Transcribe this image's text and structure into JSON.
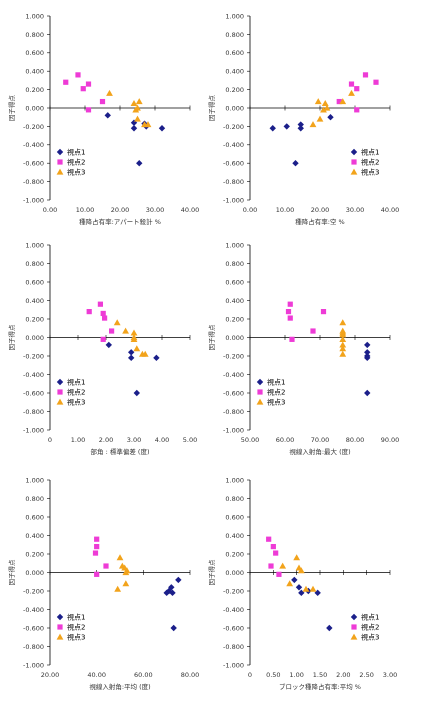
{
  "colors": {
    "series1": "#1b1f8a",
    "series2": "#ee3bd6",
    "series3": "#f2a31b",
    "axis": "#000000",
    "tick_text": "#333333"
  },
  "chart_data": [
    {
      "type": "scatter",
      "xlabel": "種降占有率:アパート殺計 %",
      "ylabel": "因子得点",
      "xlim": [
        0,
        40
      ],
      "ylim": [
        -1,
        1
      ],
      "xticks": [
        "0.00",
        "10.00",
        "20.00",
        "30.00",
        "40.00"
      ],
      "yticks": [
        "1.000",
        "0.800",
        "0.600",
        "0.400",
        "0.200",
        "0.000",
        "-0.200",
        "-0.400",
        "-0.600",
        "-0.800",
        "-1.000"
      ],
      "legend": [
        "視点1",
        "視点2",
        "視点3"
      ],
      "legend_position": "lower-left",
      "series": [
        {
          "name": "視点1",
          "marker": "diamond",
          "points": [
            [
              16.5,
              -0.08
            ],
            [
              24,
              -0.16
            ],
            [
              24,
              -0.22
            ],
            [
              25.5,
              -0.6
            ],
            [
              27,
              -0.17
            ],
            [
              27.5,
              -0.2
            ],
            [
              32,
              -0.22
            ]
          ]
        },
        {
          "name": "視点2",
          "marker": "square",
          "points": [
            [
              4.5,
              0.28
            ],
            [
              8,
              0.36
            ],
            [
              9.5,
              0.21
            ],
            [
              11,
              0.26
            ],
            [
              11,
              -0.02
            ],
            [
              15,
              0.07
            ]
          ]
        },
        {
          "name": "視点3",
          "marker": "triangle",
          "points": [
            [
              17,
              0.16
            ],
            [
              24,
              0.05
            ],
            [
              24.5,
              -0.02
            ],
            [
              25,
              0.0
            ],
            [
              25.5,
              0.07
            ],
            [
              27,
              -0.18
            ],
            [
              28,
              -0.18
            ],
            [
              25,
              -0.12
            ]
          ]
        }
      ]
    },
    {
      "type": "scatter",
      "xlabel": "種降占有率:空 %",
      "ylabel": "因子得点",
      "xlim": [
        0,
        40
      ],
      "ylim": [
        -1,
        1
      ],
      "xticks": [
        "0.00",
        "10.00",
        "20.00",
        "30.00",
        "40.00"
      ],
      "yticks": [
        "1.000",
        "0.800",
        "0.600",
        "0.400",
        "0.200",
        "0.000",
        "-0.200",
        "-0.400",
        "-0.600",
        "-0.800",
        "-1.000"
      ],
      "legend": [
        "視点1",
        "視点2",
        "視点3"
      ],
      "legend_position": "lower-right",
      "series": [
        {
          "name": "視点1",
          "marker": "diamond",
          "points": [
            [
              6.5,
              -0.22
            ],
            [
              10.5,
              -0.2
            ],
            [
              13,
              -0.6
            ],
            [
              14.5,
              -0.18
            ],
            [
              14.5,
              -0.22
            ],
            [
              23,
              -0.1
            ]
          ]
        },
        {
          "name": "視点2",
          "marker": "square",
          "points": [
            [
              25.5,
              0.07
            ],
            [
              29,
              0.26
            ],
            [
              30.5,
              0.21
            ],
            [
              30.5,
              -0.02
            ],
            [
              33,
              0.36
            ],
            [
              36,
              0.28
            ]
          ]
        },
        {
          "name": "視点3",
          "marker": "triangle",
          "points": [
            [
              18,
              -0.18
            ],
            [
              19.5,
              0.07
            ],
            [
              20,
              -0.12
            ],
            [
              21,
              -0.02
            ],
            [
              21.5,
              0.05
            ],
            [
              22,
              0.0
            ],
            [
              26.5,
              0.07
            ],
            [
              29,
              0.16
            ]
          ]
        }
      ]
    },
    {
      "type": "scatter",
      "xlabel": "部角 : 標準偏差 (度)",
      "ylabel": "因子得点",
      "xlim": [
        0,
        5
      ],
      "ylim": [
        -1,
        1
      ],
      "xticks": [
        "0",
        "1.00",
        "2.00",
        "3.00",
        "4.00",
        "5.00"
      ],
      "yticks": [
        "1.000",
        "0.800",
        "0.600",
        "0.400",
        "0.200",
        "0.000",
        "-0.200",
        "-0.400",
        "-0.600",
        "-0.800",
        "-1.000"
      ],
      "legend": [
        "視点1",
        "視点2",
        "視点3"
      ],
      "legend_position": "lower-left",
      "series": [
        {
          "name": "視点1",
          "marker": "diamond",
          "points": [
            [
              2.1,
              -0.08
            ],
            [
              2.9,
              -0.16
            ],
            [
              2.9,
              -0.22
            ],
            [
              3.1,
              -0.6
            ],
            [
              3.8,
              -0.22
            ]
          ]
        },
        {
          "name": "視点2",
          "marker": "square",
          "points": [
            [
              1.4,
              0.28
            ],
            [
              1.8,
              0.36
            ],
            [
              1.9,
              0.26
            ],
            [
              1.95,
              0.21
            ],
            [
              1.9,
              -0.02
            ],
            [
              2.2,
              0.07
            ]
          ]
        },
        {
          "name": "視点3",
          "marker": "triangle",
          "points": [
            [
              2.4,
              0.16
            ],
            [
              2.7,
              0.07
            ],
            [
              3.0,
              0.05
            ],
            [
              3.0,
              -0.02
            ],
            [
              3.0,
              0.0
            ],
            [
              3.1,
              -0.12
            ],
            [
              3.3,
              -0.18
            ],
            [
              3.4,
              -0.18
            ]
          ]
        }
      ]
    },
    {
      "type": "scatter",
      "xlabel": "視線入射角:最大 (度)",
      "ylabel": "因子得点",
      "xlim": [
        50,
        90
      ],
      "ylim": [
        -1,
        1
      ],
      "xticks": [
        "50.00",
        "60.00",
        "70.00",
        "80.00",
        "90.00"
      ],
      "yticks": [
        "1.000",
        "0.800",
        "0.600",
        "0.400",
        "0.200",
        "0.000",
        "-0.200",
        "-0.400",
        "-0.600",
        "-0.800",
        "-1.000"
      ],
      "legend": [
        "視点1",
        "視点2",
        "視点3"
      ],
      "legend_position": "lower-left",
      "series": [
        {
          "name": "視点1",
          "marker": "diamond",
          "points": [
            [
              83.5,
              -0.08
            ],
            [
              83.5,
              -0.16
            ],
            [
              83.5,
              -0.2
            ],
            [
              83.5,
              -0.22
            ],
            [
              83.5,
              -0.6
            ]
          ]
        },
        {
          "name": "視点2",
          "marker": "square",
          "points": [
            [
              61,
              0.28
            ],
            [
              61.5,
              0.36
            ],
            [
              61.5,
              0.21
            ],
            [
              62,
              -0.02
            ],
            [
              68,
              0.07
            ],
            [
              71,
              0.28
            ]
          ]
        },
        {
          "name": "視点3",
          "marker": "triangle",
          "points": [
            [
              76.5,
              0.16
            ],
            [
              76.5,
              0.07
            ],
            [
              76.5,
              0.03
            ],
            [
              76.5,
              -0.02
            ],
            [
              76.5,
              -0.08
            ],
            [
              76.5,
              -0.12
            ],
            [
              76.5,
              -0.18
            ],
            [
              76.5,
              0.05
            ]
          ]
        }
      ]
    },
    {
      "type": "scatter",
      "xlabel": "視線入射角:平均 (度)",
      "ylabel": "因子得点",
      "xlim": [
        20,
        80
      ],
      "ylim": [
        -1,
        1
      ],
      "xticks": [
        "20.00",
        "40.00",
        "60.00",
        "80.00"
      ],
      "yticks": [
        "1.000",
        "0.800",
        "0.600",
        "0.400",
        "0.200",
        "0.000",
        "-0.200",
        "-0.400",
        "-0.600",
        "-0.800",
        "-1.000"
      ],
      "legend": [
        "視点1",
        "視点2",
        "視点3"
      ],
      "legend_position": "lower-left",
      "series": [
        {
          "name": "視点1",
          "marker": "diamond",
          "points": [
            [
              70,
              -0.22
            ],
            [
              71,
              -0.2
            ],
            [
              72,
              -0.16
            ],
            [
              72.5,
              -0.22
            ],
            [
              73,
              -0.6
            ],
            [
              75,
              -0.08
            ]
          ]
        },
        {
          "name": "視点2",
          "marker": "square",
          "points": [
            [
              40,
              0.36
            ],
            [
              40,
              0.28
            ],
            [
              39.5,
              0.21
            ],
            [
              40,
              -0.02
            ],
            [
              44,
              0.07
            ]
          ]
        },
        {
          "name": "視点3",
          "marker": "triangle",
          "points": [
            [
              49,
              -0.18
            ],
            [
              50,
              0.16
            ],
            [
              51,
              0.07
            ],
            [
              52,
              0.05
            ],
            [
              52.5,
              0.0
            ],
            [
              52.5,
              -0.12
            ],
            [
              53,
              0.02
            ]
          ]
        }
      ]
    },
    {
      "type": "scatter",
      "xlabel": "ブロック種降占有率:平均 %",
      "ylabel": "因子得点",
      "xlim": [
        0,
        3
      ],
      "ylim": [
        -1,
        1
      ],
      "xticks": [
        "0",
        "0.50",
        "1.00",
        "1.50",
        "2.00",
        "2.50",
        "3.00"
      ],
      "yticks": [
        "1.000",
        "0.800",
        "0.600",
        "0.400",
        "0.200",
        "0.000",
        "-0.200",
        "-0.400",
        "-0.600",
        "-0.800",
        "-1.000"
      ],
      "legend": [
        "視点1",
        "視点2",
        "視点3"
      ],
      "legend_position": "lower-right",
      "series": [
        {
          "name": "視点1",
          "marker": "diamond",
          "points": [
            [
              0.95,
              -0.08
            ],
            [
              1.05,
              -0.16
            ],
            [
              1.1,
              -0.22
            ],
            [
              1.25,
              -0.2
            ],
            [
              1.45,
              -0.22
            ],
            [
              1.7,
              -0.6
            ]
          ]
        },
        {
          "name": "視点2",
          "marker": "square",
          "points": [
            [
              0.4,
              0.36
            ],
            [
              0.45,
              0.07
            ],
            [
              0.5,
              0.28
            ],
            [
              0.55,
              0.21
            ],
            [
              0.62,
              -0.02
            ]
          ]
        },
        {
          "name": "視点3",
          "marker": "triangle",
          "points": [
            [
              0.7,
              0.07
            ],
            [
              0.85,
              -0.12
            ],
            [
              1.0,
              0.16
            ],
            [
              1.05,
              0.05
            ],
            [
              1.1,
              0.02
            ],
            [
              1.2,
              -0.18
            ],
            [
              1.35,
              -0.18
            ]
          ]
        }
      ]
    }
  ]
}
